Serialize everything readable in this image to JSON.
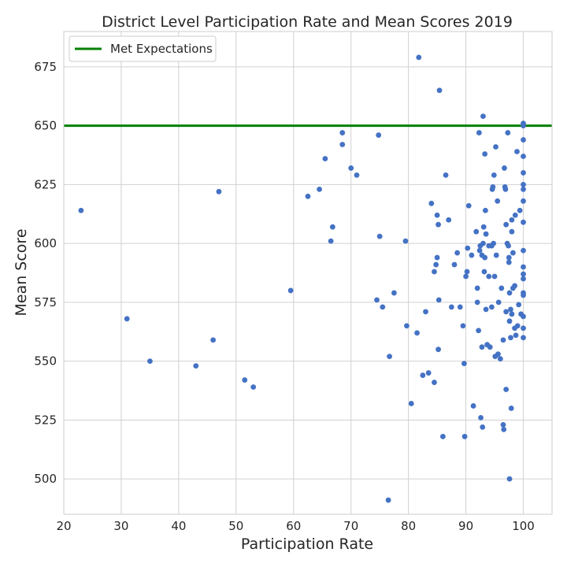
{
  "chart_data": {
    "type": "scatter",
    "title": "District Level Participation Rate and Mean Scores 2019",
    "xlabel": "Participation Rate",
    "ylabel": "Mean Score",
    "xlim": [
      20,
      105
    ],
    "ylim": [
      485,
      690
    ],
    "x_ticks": [
      20,
      30,
      40,
      50,
      60,
      70,
      80,
      90,
      100
    ],
    "y_ticks": [
      500,
      525,
      550,
      575,
      600,
      625,
      650,
      675
    ],
    "grid": true,
    "legend": {
      "placement": "top-left",
      "entries": [
        "Met Expectations"
      ]
    },
    "reference_line": {
      "name": "Met Expectations",
      "y": 650,
      "color": "#008000"
    },
    "point_color": "#4472c4",
    "points": [
      [
        23,
        614
      ],
      [
        31,
        568
      ],
      [
        35,
        550
      ],
      [
        43,
        548
      ],
      [
        46,
        559
      ],
      [
        47,
        622
      ],
      [
        51.5,
        542
      ],
      [
        53,
        539
      ],
      [
        59.5,
        580
      ],
      [
        62.5,
        620
      ],
      [
        64.5,
        623
      ],
      [
        65.5,
        636
      ],
      [
        66.5,
        601
      ],
      [
        66.8,
        607
      ],
      [
        68.5,
        647
      ],
      [
        68.5,
        642
      ],
      [
        70,
        632
      ],
      [
        71,
        629
      ],
      [
        74.5,
        576
      ],
      [
        74.8,
        646
      ],
      [
        75,
        603
      ],
      [
        75.5,
        573
      ],
      [
        76.5,
        491
      ],
      [
        76.7,
        552
      ],
      [
        77.5,
        579
      ],
      [
        79.5,
        601
      ],
      [
        79.7,
        565
      ],
      [
        80.5,
        532
      ],
      [
        81.5,
        562
      ],
      [
        81.8,
        679
      ],
      [
        82.5,
        544
      ],
      [
        83,
        571
      ],
      [
        83.5,
        545
      ],
      [
        84,
        617
      ],
      [
        84.5,
        541
      ],
      [
        84.5,
        588
      ],
      [
        84.8,
        591
      ],
      [
        85,
        594
      ],
      [
        85,
        612
      ],
      [
        85.2,
        555
      ],
      [
        85.2,
        608
      ],
      [
        85.3,
        576
      ],
      [
        85.4,
        665
      ],
      [
        86,
        518
      ],
      [
        86.5,
        629
      ],
      [
        87,
        610
      ],
      [
        87.5,
        573
      ],
      [
        88,
        591
      ],
      [
        88.5,
        596
      ],
      [
        89,
        573
      ],
      [
        89.5,
        565
      ],
      [
        89.7,
        549
      ],
      [
        89.8,
        518
      ],
      [
        90,
        586
      ],
      [
        90.2,
        588
      ],
      [
        90.3,
        598
      ],
      [
        90.5,
        616
      ],
      [
        91,
        595
      ],
      [
        91.3,
        531
      ],
      [
        91.8,
        605
      ],
      [
        92,
        581
      ],
      [
        92,
        575
      ],
      [
        92.2,
        563
      ],
      [
        92.3,
        647
      ],
      [
        92.4,
        597
      ],
      [
        92.5,
        599
      ],
      [
        92.6,
        526
      ],
      [
        92.8,
        595
      ],
      [
        92.8,
        556
      ],
      [
        92.9,
        522
      ],
      [
        93,
        654
      ],
      [
        93,
        600
      ],
      [
        93.1,
        607
      ],
      [
        93.2,
        588
      ],
      [
        93.3,
        638
      ],
      [
        93.3,
        594
      ],
      [
        93.4,
        614
      ],
      [
        93.5,
        604
      ],
      [
        93.5,
        572
      ],
      [
        93.7,
        557
      ],
      [
        94,
        586
      ],
      [
        94,
        599
      ],
      [
        94.2,
        556
      ],
      [
        94.5,
        573
      ],
      [
        94.5,
        599
      ],
      [
        94.6,
        623
      ],
      [
        94.7,
        624
      ],
      [
        94.8,
        600
      ],
      [
        94.9,
        629
      ],
      [
        95,
        586
      ],
      [
        95.1,
        552
      ],
      [
        95.2,
        641
      ],
      [
        95.3,
        595
      ],
      [
        95.5,
        618
      ],
      [
        95.6,
        553
      ],
      [
        95.7,
        575
      ],
      [
        96,
        551
      ],
      [
        96.2,
        581
      ],
      [
        96.5,
        559
      ],
      [
        96.5,
        523
      ],
      [
        96.6,
        521
      ],
      [
        96.7,
        632
      ],
      [
        96.8,
        624
      ],
      [
        96.9,
        623
      ],
      [
        97,
        538
      ],
      [
        97,
        571
      ],
      [
        97,
        608
      ],
      [
        97.2,
        600
      ],
      [
        97.3,
        647
      ],
      [
        97.4,
        599
      ],
      [
        97.5,
        594
      ],
      [
        97.5,
        592
      ],
      [
        97.6,
        579
      ],
      [
        97.6,
        567
      ],
      [
        97.6,
        500
      ],
      [
        97.8,
        572
      ],
      [
        97.8,
        560
      ],
      [
        97.9,
        530
      ],
      [
        98,
        570
      ],
      [
        98,
        605
      ],
      [
        98,
        610
      ],
      [
        98.2,
        596
      ],
      [
        98.2,
        581
      ],
      [
        98.5,
        582
      ],
      [
        98.5,
        564
      ],
      [
        98.6,
        612
      ],
      [
        98.7,
        561
      ],
      [
        98.9,
        639
      ],
      [
        99,
        565
      ],
      [
        99.2,
        574
      ],
      [
        99.4,
        614
      ],
      [
        99.6,
        570
      ],
      [
        100,
        651
      ],
      [
        100,
        650
      ],
      [
        100,
        644
      ],
      [
        100,
        637
      ],
      [
        100,
        630
      ],
      [
        100,
        625
      ],
      [
        100,
        623
      ],
      [
        100,
        618
      ],
      [
        100,
        609
      ],
      [
        100,
        597
      ],
      [
        100,
        590
      ],
      [
        100,
        587
      ],
      [
        100,
        585
      ],
      [
        100,
        579
      ],
      [
        100,
        578
      ],
      [
        100,
        569
      ],
      [
        100,
        564
      ],
      [
        100,
        560
      ]
    ]
  }
}
